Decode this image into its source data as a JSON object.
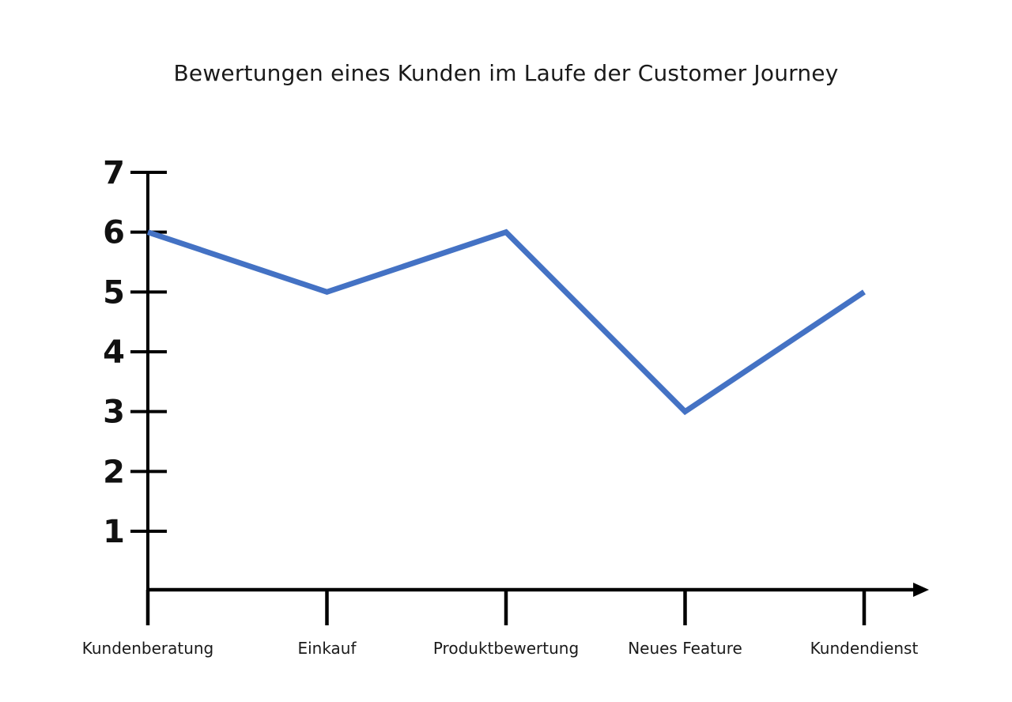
{
  "chart_data": {
    "type": "line",
    "title": "Bewertungen eines Kunden im Laufe der Customer Journey",
    "categories": [
      "Kundenberatung",
      "Einkauf",
      "Produktbewertung",
      "Neues Feature",
      "Kundendienst"
    ],
    "values": [
      6,
      5,
      6,
      3,
      5
    ],
    "yticks": [
      1,
      2,
      3,
      4,
      5,
      6,
      7
    ],
    "ylim": [
      0,
      7
    ],
    "xlabel": "",
    "ylabel": "",
    "grid": false,
    "legend": false,
    "line_color": "#4472C4",
    "axis_color": "#000000",
    "background_color": "#ffffff"
  }
}
